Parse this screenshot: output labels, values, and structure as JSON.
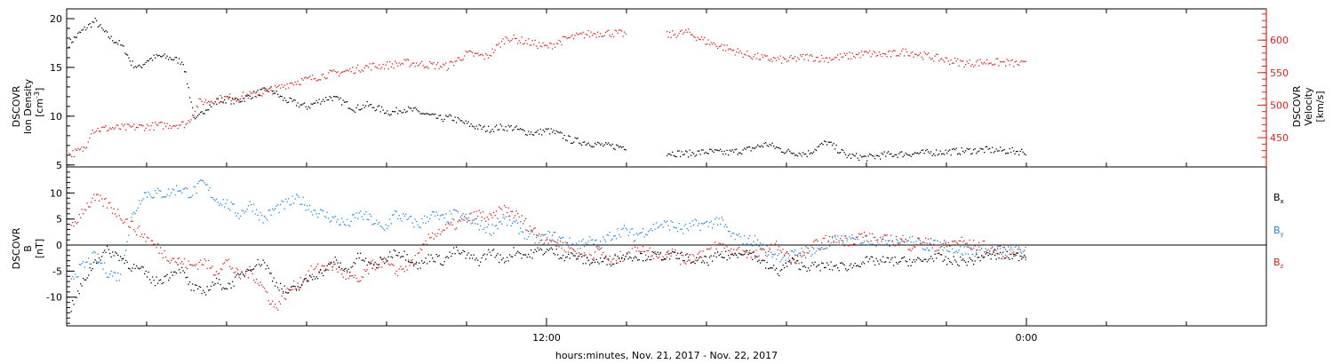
{
  "colors": {
    "black": "#000000",
    "red": "#e0201c",
    "blue": "#1e88e5"
  },
  "xlabel": "hours:minutes, Nov. 21, 2017 - Nov. 22, 2017",
  "chart_data": [
    {
      "type": "scatter",
      "panel": "top",
      "x_unit": "hours from 00:00 Nov. 21, 2017",
      "xlim": [
        0,
        30
      ],
      "x_ticks": [
        {
          "x": 12,
          "label": "12:00"
        },
        {
          "x": 24,
          "label": "0:00"
        }
      ],
      "ylabel_left": [
        "DSCOVR",
        "Ion Density",
        "[cm",
        "-3",
        "]"
      ],
      "ylim_left": [
        4.8,
        21
      ],
      "yticks_left": [
        5,
        10,
        15,
        20
      ],
      "ylabel_right": [
        "DSCOVR",
        "Velocity",
        "[km/s]"
      ],
      "ylim_right": [
        405,
        648
      ],
      "yticks_right": [
        450,
        500,
        550,
        600
      ],
      "series": [
        {
          "axis": "left",
          "color": "#000000",
          "x": [
            0.05,
            0.3,
            0.5,
            0.7,
            0.9,
            1.1,
            1.3,
            1.45,
            1.6,
            1.8,
            2.0,
            2.3,
            2.6,
            2.9,
            3.2,
            3.5,
            3.8,
            4.0,
            4.2,
            4.5,
            4.8,
            5.1,
            5.4,
            5.7,
            6.0,
            6.3,
            6.6,
            6.9,
            7.2,
            7.5,
            7.8,
            8.1,
            8.4,
            8.7,
            9.0,
            9.3,
            9.6,
            9.9,
            10.2,
            10.5,
            10.8,
            11.1,
            11.4,
            11.7,
            12.0,
            12.3,
            12.6,
            12.9,
            13.2,
            13.5,
            14.0,
            14.5,
            15.0,
            15.5,
            16.0,
            16.5,
            17.0,
            17.5,
            18.0,
            18.5,
            19.0,
            19.5,
            20.0,
            20.5,
            21.0,
            21.5,
            22.0,
            22.5,
            23.0,
            23.5,
            24.0
          ],
          "y": [
            17.5,
            18.5,
            19.2,
            19.8,
            18.8,
            18.0,
            17.5,
            16.8,
            15.5,
            15.0,
            15.8,
            16.2,
            16.0,
            15.6,
            9.5,
            11.0,
            11.6,
            11.8,
            11.5,
            12.0,
            12.5,
            12.8,
            11.8,
            11.4,
            11.0,
            11.6,
            12.0,
            11.5,
            10.8,
            11.2,
            10.8,
            10.4,
            10.8,
            10.6,
            10.2,
            9.8,
            9.9,
            9.4,
            9.0,
            8.7,
            8.9,
            8.9,
            8.5,
            8.3,
            8.6,
            8.2,
            7.6,
            7.4,
            7.2,
            7.0,
            6.9,
            null,
            6.3,
            6.2,
            6.4,
            6.3,
            6.6,
            7.2,
            6.4,
            6.2,
            7.4,
            6.0,
            5.8,
            6.1,
            6.2,
            6.3,
            6.4,
            6.5,
            6.6,
            6.5,
            6.4
          ]
        },
        {
          "axis": "right",
          "color": "#e0201c",
          "x": [
            0.05,
            0.3,
            0.45,
            0.6,
            1.0,
            1.5,
            2.0,
            2.5,
            3.0,
            3.3,
            3.6,
            4.0,
            4.4,
            4.8,
            5.2,
            5.6,
            6.0,
            6.5,
            7.0,
            7.5,
            8.0,
            8.5,
            9.0,
            9.5,
            10.0,
            10.5,
            11.0,
            11.5,
            12.0,
            12.5,
            13.0,
            13.5,
            14.0,
            14.5,
            15.0,
            15.5,
            16.0,
            16.5,
            17.0,
            17.5,
            18.0,
            18.5,
            19.0,
            19.5,
            20.0,
            20.5,
            21.0,
            21.5,
            22.0,
            22.5,
            23.0,
            23.5,
            24.0
          ],
          "y": [
            425,
            430,
            435,
            462,
            465,
            466,
            468,
            470,
            472,
            505,
            508,
            512,
            515,
            518,
            525,
            535,
            540,
            548,
            553,
            560,
            562,
            566,
            563,
            560,
            580,
            575,
            605,
            598,
            590,
            603,
            610,
            612,
            610,
            null,
            608,
            613,
            598,
            588,
            578,
            572,
            570,
            575,
            572,
            576,
            580,
            578,
            583,
            576,
            570,
            565,
            567,
            566,
            563
          ]
        }
      ]
    },
    {
      "type": "scatter",
      "panel": "bottom",
      "x_unit": "hours from 00:00 Nov. 21, 2017",
      "xlim": [
        0,
        30
      ],
      "x_ticks": [
        {
          "x": 12,
          "label": "12:00"
        },
        {
          "x": 24,
          "label": "0:00"
        }
      ],
      "ylabel": [
        "DSCOVR",
        "B",
        "[nT]"
      ],
      "ylim": [
        -15.5,
        15
      ],
      "yticks": [
        -10,
        -5,
        0,
        5,
        10
      ],
      "zero_line": 0,
      "legend_placement": "right",
      "series": [
        {
          "name": "B",
          "subscript": "x",
          "color": "#000000",
          "x": [
            0.1,
            0.4,
            0.7,
            1.0,
            1.3,
            1.6,
            1.9,
            2.2,
            2.5,
            2.8,
            3.1,
            3.4,
            3.7,
            4.0,
            4.3,
            4.6,
            4.9,
            5.2,
            5.5,
            5.8,
            6.1,
            6.4,
            6.7,
            7.0,
            7.3,
            7.6,
            7.9,
            8.2,
            8.5,
            8.8,
            9.1,
            9.4,
            9.7,
            10.0,
            10.3,
            10.6,
            10.9,
            11.2,
            11.5,
            11.8,
            12.1,
            12.4,
            12.7,
            13.0,
            13.3,
            13.6,
            13.9,
            14.2,
            14.5,
            14.8,
            15.1,
            15.4,
            15.7,
            16.0,
            16.3,
            16.6,
            16.9,
            17.2,
            17.5,
            17.8,
            18.1,
            18.4,
            18.7,
            19.0,
            19.3,
            19.6,
            19.9,
            20.2,
            20.5,
            20.8,
            21.1,
            21.4,
            21.7,
            22.0,
            22.3,
            22.6,
            22.9,
            23.2,
            23.5,
            23.8,
            24.0
          ],
          "y": [
            -12,
            -7,
            -3,
            -1,
            -2,
            -4,
            -5,
            -7,
            -6,
            -4,
            -8,
            -9,
            -7,
            -8,
            -6,
            -4,
            -3,
            -7,
            -9,
            -8,
            -6,
            -5,
            -3,
            -5,
            -2,
            -4,
            -3,
            -1,
            -2,
            -4,
            -2,
            -3,
            -1,
            -2,
            -3,
            -1,
            -3,
            -1,
            -2,
            -1,
            -1,
            -2,
            -2,
            -3,
            -3,
            -3,
            -2,
            -2,
            -2,
            -2,
            -2,
            -2,
            -3,
            -3,
            -2,
            -2,
            -1,
            -2,
            -4,
            -5,
            -3,
            -4,
            -4,
            -4,
            -4,
            -4,
            -3,
            -3,
            -3,
            -3,
            -3,
            -3,
            -2,
            -3,
            -3,
            -3,
            -2,
            -2,
            -2,
            -2,
            -2
          ]
        },
        {
          "name": "B",
          "subscript": "y",
          "color": "#1e88e5",
          "x": [
            0.1,
            0.4,
            0.7,
            1.0,
            1.3,
            1.6,
            1.9,
            2.2,
            2.5,
            2.8,
            3.1,
            3.4,
            3.7,
            4.0,
            4.3,
            4.6,
            4.9,
            5.2,
            5.5,
            5.8,
            6.1,
            6.4,
            6.7,
            7.0,
            7.3,
            7.6,
            7.9,
            8.2,
            8.5,
            8.8,
            9.1,
            9.4,
            9.7,
            10.0,
            10.3,
            10.6,
            10.9,
            11.2,
            11.5,
            11.8,
            12.1,
            12.4,
            12.7,
            13.0,
            13.3,
            13.6,
            13.9,
            14.2,
            14.5,
            14.8,
            15.1,
            15.4,
            15.7,
            16.0,
            16.3,
            16.6,
            16.9,
            17.2,
            17.5,
            17.8,
            18.1,
            18.4,
            18.7,
            19.0,
            19.3,
            19.6,
            19.9,
            20.2,
            20.5,
            20.8,
            21.1,
            21.4,
            21.7,
            22.0,
            22.3,
            22.6,
            22.9,
            23.2,
            23.5,
            23.8,
            24.0
          ],
          "y": [
            -6,
            -4,
            -2,
            -5,
            -6,
            5,
            10,
            10,
            10,
            11,
            10,
            12,
            9,
            8,
            6,
            8,
            5,
            7,
            8,
            9,
            7,
            6,
            5,
            4,
            6,
            5,
            3,
            6,
            5,
            4,
            6,
            5,
            6,
            5,
            4,
            3,
            5,
            4,
            2,
            1,
            2,
            1,
            0,
            1,
            0,
            2,
            3,
            2,
            3,
            4,
            4,
            3,
            4,
            4,
            5,
            2,
            1,
            1,
            -1,
            -2,
            -2,
            -1,
            -1,
            0,
            1,
            1,
            1,
            1,
            1,
            1,
            1,
            0,
            0,
            0,
            -1,
            -1,
            -1,
            -1,
            -1,
            -1,
            -1
          ]
        },
        {
          "name": "B",
          "subscript": "z",
          "color": "#e0201c",
          "x": [
            0.1,
            0.4,
            0.7,
            1.0,
            1.3,
            1.6,
            1.9,
            2.2,
            2.5,
            2.8,
            3.1,
            3.4,
            3.7,
            4.0,
            4.3,
            4.6,
            4.9,
            5.2,
            5.5,
            5.8,
            6.1,
            6.4,
            6.7,
            7.0,
            7.3,
            7.6,
            7.9,
            8.2,
            8.5,
            8.8,
            9.1,
            9.4,
            9.7,
            10.0,
            10.3,
            10.6,
            10.9,
            11.2,
            11.5,
            11.8,
            12.1,
            12.4,
            12.7,
            13.0,
            13.3,
            13.6,
            13.9,
            14.2,
            14.5,
            14.8,
            15.1,
            15.4,
            15.7,
            16.0,
            16.3,
            16.6,
            16.9,
            17.2,
            17.5,
            17.8,
            18.1,
            18.4,
            18.7,
            19.0,
            19.3,
            19.6,
            19.9,
            20.2,
            20.5,
            20.8,
            21.1,
            21.4,
            21.7,
            22.0,
            22.3,
            22.6,
            22.9,
            23.2,
            23.5,
            23.8,
            24.0
          ],
          "y": [
            3,
            7,
            9,
            8,
            6,
            4,
            2,
            0,
            -2,
            -3,
            -4,
            -3,
            -5,
            -3,
            -6,
            -5,
            -8,
            -12,
            -9,
            -7,
            -5,
            -4,
            -4,
            -6,
            -7,
            -4,
            -3,
            -5,
            -4,
            -2,
            2,
            3,
            4,
            5,
            6,
            5,
            7,
            6,
            4,
            2,
            1,
            0,
            -1,
            -2,
            -1,
            -3,
            -2,
            0,
            -1,
            -2,
            -1,
            -3,
            -2,
            -1,
            0,
            -1,
            -1,
            -2,
            -1,
            0,
            -3,
            -2,
            0,
            1,
            1,
            1,
            2,
            1,
            1,
            1,
            0,
            1,
            0,
            0,
            1,
            0,
            0,
            -1,
            -1,
            -1,
            -2
          ]
        }
      ]
    }
  ]
}
